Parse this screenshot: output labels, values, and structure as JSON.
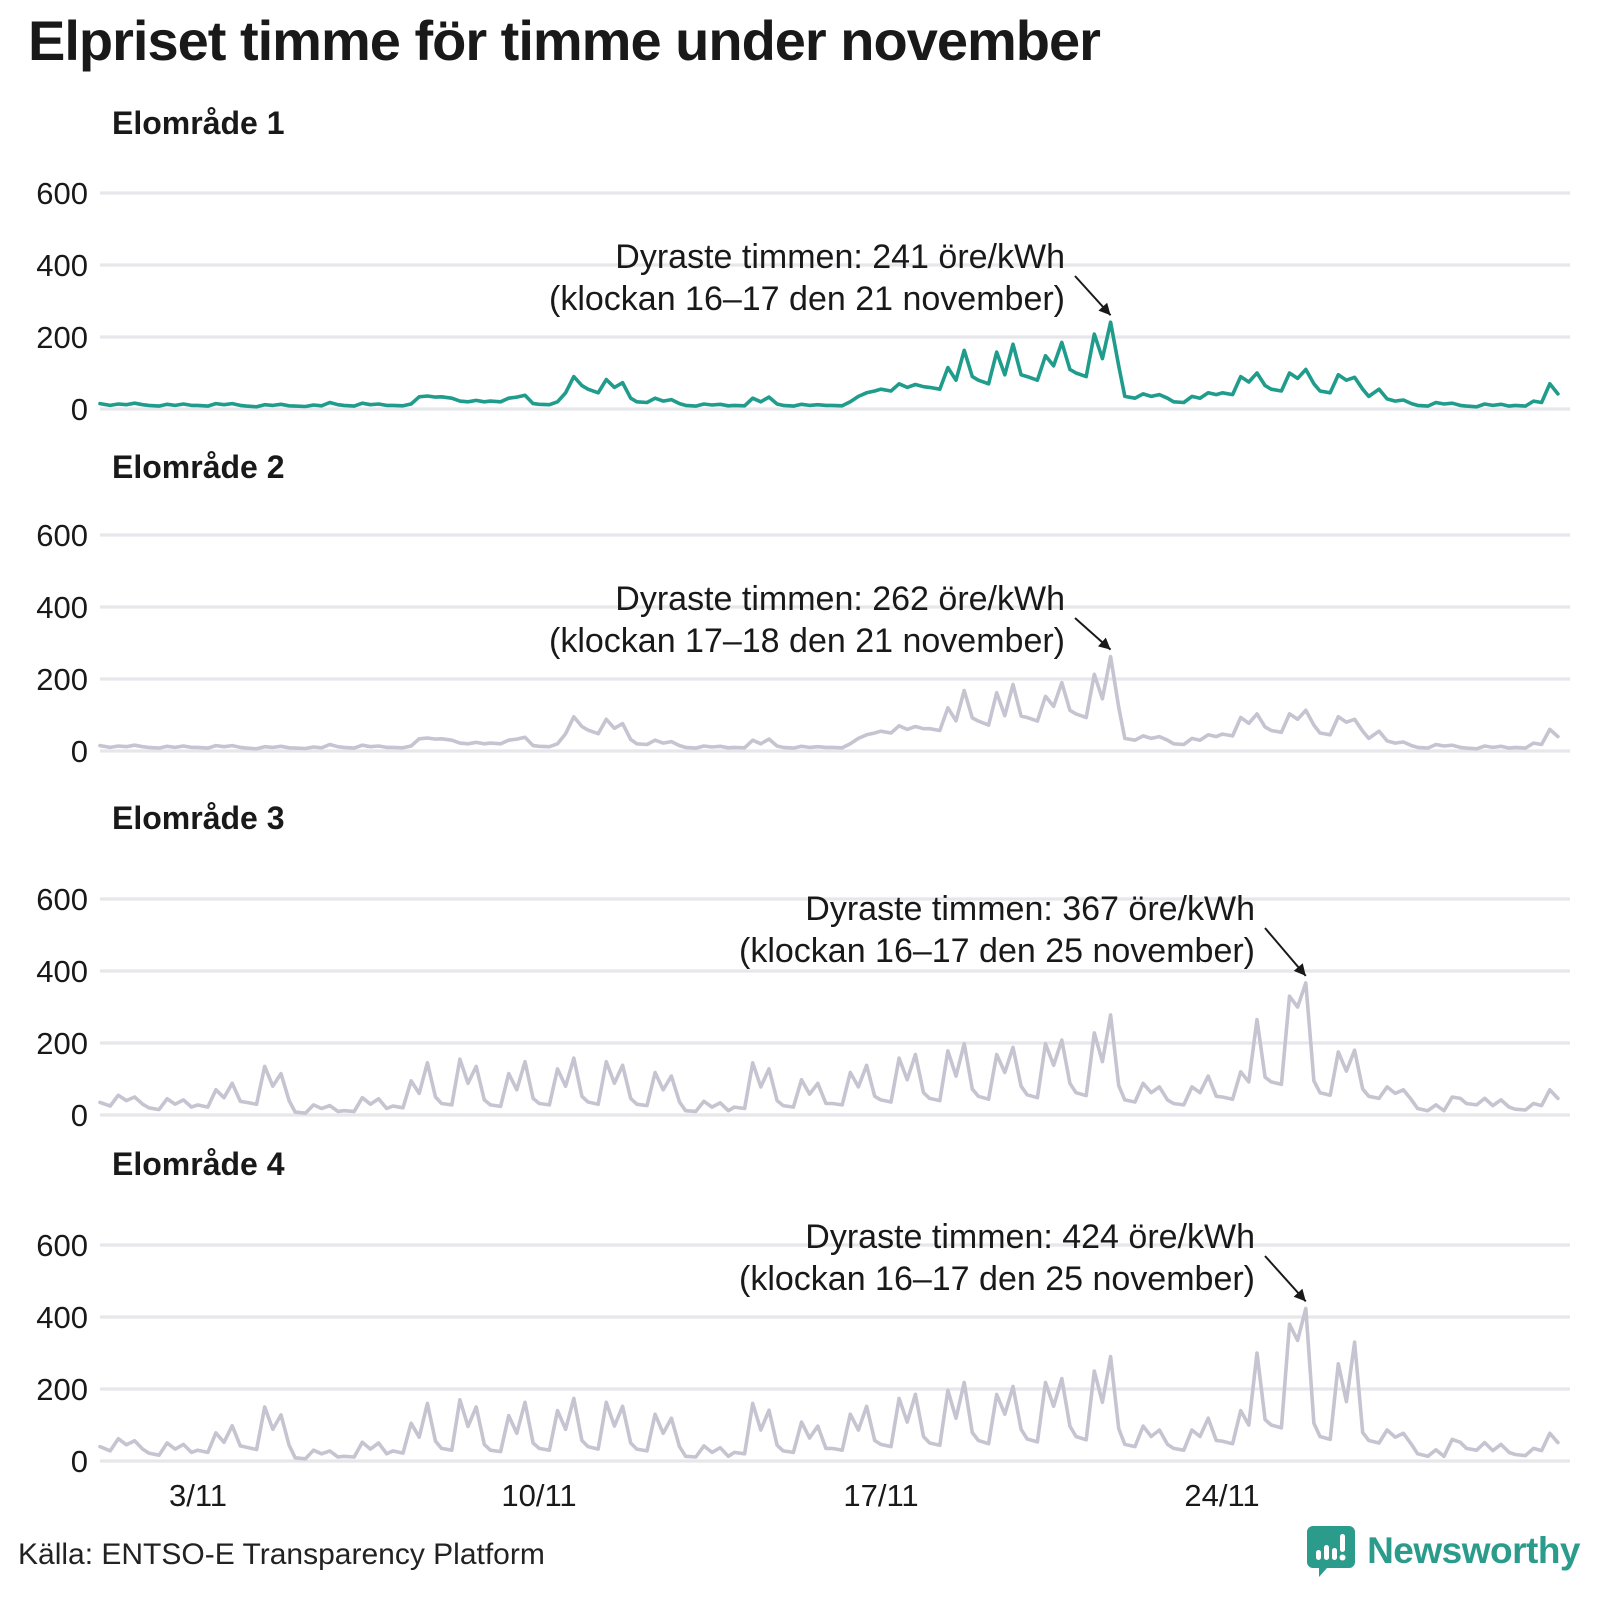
{
  "header": {
    "title": "Elpriset timme för timme under november"
  },
  "footer": {
    "source": "Källa: ENTSO-E Transparency Platform",
    "brand": "Newsworthy"
  },
  "colors": {
    "accent_teal": "#1f9c8c",
    "muted_gray": "#c6c4d1",
    "gridline": "#e7e6ea",
    "text": "#191919"
  },
  "axes": {
    "yticks": [
      0,
      200,
      400,
      600
    ],
    "xticks": [
      {
        "label": "3/11",
        "day": 3
      },
      {
        "label": "10/11",
        "day": 10
      },
      {
        "label": "17/11",
        "day": 17
      },
      {
        "label": "24/11",
        "day": 24
      }
    ]
  },
  "chart_data": [
    {
      "type": "line",
      "title": "Elområde 1",
      "unit": "öre/kWh",
      "color": "#1f9c8c",
      "ylim": [
        0,
        600
      ],
      "x_sampling": {
        "month": "november",
        "days": 30,
        "hours": [
          0,
          5,
          9,
          13,
          17,
          21
        ]
      },
      "annotation": {
        "line1": "Dyraste timmen: 241 öre/kWh",
        "line2": "(klockan 16–17 den 21 november)",
        "peak_value": 241,
        "peak_day": 21,
        "peak_hour": 17
      },
      "values_by_day": [
        [
          15,
          10,
          14,
          12,
          16,
          12
        ],
        [
          10,
          8,
          13,
          10,
          14,
          10
        ],
        [
          10,
          8,
          15,
          12,
          15,
          10
        ],
        [
          8,
          6,
          12,
          10,
          13,
          9
        ],
        [
          8,
          7,
          11,
          9,
          18,
          12
        ],
        [
          10,
          8,
          16,
          12,
          14,
          10
        ],
        [
          10,
          9,
          14,
          34,
          36,
          33
        ],
        [
          34,
          30,
          22,
          20,
          24,
          20
        ],
        [
          22,
          20,
          30,
          33,
          38,
          15
        ],
        [
          13,
          12,
          20,
          45,
          90,
          65
        ],
        [
          55,
          45,
          82,
          60,
          73,
          30
        ],
        [
          20,
          18,
          30,
          22,
          26,
          15
        ],
        [
          10,
          8,
          14,
          11,
          13,
          9
        ],
        [
          10,
          9,
          30,
          20,
          33,
          14
        ],
        [
          10,
          8,
          13,
          10,
          12,
          10
        ],
        [
          10,
          9,
          20,
          35,
          45,
          50
        ],
        [
          55,
          50,
          70,
          60,
          68,
          62
        ],
        [
          60,
          55,
          115,
          80,
          163,
          90
        ],
        [
          80,
          70,
          158,
          95,
          180,
          95
        ],
        [
          90,
          80,
          148,
          120,
          185,
          110
        ],
        [
          100,
          90,
          208,
          140,
          241,
          120
        ],
        [
          35,
          30,
          42,
          35,
          40,
          30
        ],
        [
          20,
          18,
          35,
          30,
          45,
          40
        ],
        [
          45,
          40,
          90,
          75,
          100,
          65
        ],
        [
          55,
          50,
          100,
          85,
          110,
          70
        ],
        [
          50,
          45,
          95,
          80,
          88,
          55
        ],
        [
          35,
          55,
          28,
          22,
          25,
          15
        ],
        [
          10,
          8,
          18,
          14,
          16,
          10
        ],
        [
          8,
          6,
          14,
          10,
          13,
          8
        ],
        [
          10,
          8,
          22,
          18,
          70,
          42
        ]
      ]
    },
    {
      "type": "line",
      "title": "Elområde 2",
      "unit": "öre/kWh",
      "color": "#c6c4d1",
      "ylim": [
        0,
        600
      ],
      "x_sampling": {
        "month": "november",
        "days": 30,
        "hours": [
          0,
          5,
          9,
          13,
          17,
          21
        ]
      },
      "annotation": {
        "line1": "Dyraste timmen: 262 öre/kWh",
        "line2": "(klockan 17–18 den 21 november)",
        "peak_value": 262,
        "peak_day": 21,
        "peak_hour": 17
      },
      "values_by_day": [
        [
          15,
          10,
          14,
          12,
          16,
          12
        ],
        [
          10,
          8,
          13,
          10,
          14,
          10
        ],
        [
          10,
          8,
          15,
          12,
          15,
          10
        ],
        [
          8,
          6,
          12,
          10,
          13,
          9
        ],
        [
          8,
          7,
          11,
          9,
          18,
          12
        ],
        [
          10,
          8,
          16,
          12,
          14,
          10
        ],
        [
          10,
          9,
          14,
          34,
          36,
          33
        ],
        [
          34,
          30,
          22,
          20,
          24,
          20
        ],
        [
          22,
          20,
          30,
          33,
          38,
          15
        ],
        [
          13,
          12,
          20,
          48,
          95,
          68
        ],
        [
          58,
          48,
          88,
          63,
          76,
          32
        ],
        [
          20,
          18,
          30,
          22,
          26,
          15
        ],
        [
          10,
          8,
          14,
          11,
          13,
          9
        ],
        [
          10,
          9,
          30,
          20,
          33,
          14
        ],
        [
          10,
          8,
          13,
          10,
          12,
          10
        ],
        [
          10,
          9,
          20,
          35,
          45,
          50
        ],
        [
          55,
          50,
          70,
          60,
          68,
          62
        ],
        [
          62,
          57,
          120,
          84,
          168,
          92
        ],
        [
          83,
          72,
          162,
          98,
          185,
          97
        ],
        [
          93,
          83,
          152,
          124,
          190,
          113
        ],
        [
          103,
          93,
          213,
          145,
          262,
          122
        ],
        [
          35,
          30,
          42,
          35,
          40,
          30
        ],
        [
          20,
          18,
          35,
          30,
          45,
          40
        ],
        [
          47,
          42,
          93,
          77,
          103,
          67
        ],
        [
          57,
          52,
          103,
          88,
          113,
          72
        ],
        [
          50,
          45,
          95,
          80,
          88,
          55
        ],
        [
          35,
          55,
          28,
          22,
          25,
          15
        ],
        [
          10,
          8,
          18,
          14,
          16,
          10
        ],
        [
          8,
          6,
          14,
          10,
          13,
          8
        ],
        [
          10,
          8,
          22,
          18,
          60,
          40
        ]
      ]
    },
    {
      "type": "line",
      "title": "Elområde 3",
      "unit": "öre/kWh",
      "color": "#c6c4d1",
      "ylim": [
        0,
        600
      ],
      "x_sampling": {
        "month": "november",
        "days": 30,
        "hours": [
          0,
          5,
          9,
          13,
          17,
          21
        ]
      },
      "annotation": {
        "line1": "Dyraste timmen: 367 öre/kWh",
        "line2": "(klockan 16–17 den 25 november)",
        "peak_value": 367,
        "peak_day": 25,
        "peak_hour": 17
      },
      "values_by_day": [
        [
          35,
          25,
          55,
          40,
          50,
          30
        ],
        [
          20,
          15,
          45,
          30,
          42,
          22
        ],
        [
          28,
          22,
          70,
          48,
          88,
          38
        ],
        [
          35,
          30,
          135,
          80,
          115,
          40
        ],
        [
          8,
          5,
          28,
          18,
          26,
          10
        ],
        [
          12,
          10,
          48,
          30,
          45,
          18
        ],
        [
          25,
          20,
          95,
          60,
          145,
          50
        ],
        [
          32,
          28,
          155,
          88,
          135,
          42
        ],
        [
          28,
          24,
          115,
          70,
          148,
          46
        ],
        [
          32,
          28,
          128,
          80,
          158,
          52
        ],
        [
          36,
          30,
          148,
          88,
          138,
          46
        ],
        [
          30,
          26,
          118,
          70,
          108,
          36
        ],
        [
          12,
          10,
          38,
          22,
          34,
          12
        ],
        [
          22,
          18,
          145,
          78,
          128,
          40
        ],
        [
          26,
          22,
          98,
          58,
          88,
          32
        ],
        [
          32,
          28,
          118,
          78,
          138,
          52
        ],
        [
          42,
          36,
          158,
          98,
          168,
          62
        ],
        [
          46,
          40,
          178,
          108,
          198,
          72
        ],
        [
          52,
          44,
          168,
          118,
          188,
          80
        ],
        [
          56,
          48,
          198,
          138,
          208,
          88
        ],
        [
          62,
          54,
          228,
          148,
          278,
          82
        ],
        [
          42,
          36,
          88,
          62,
          78,
          42
        ],
        [
          32,
          28,
          78,
          62,
          108,
          52
        ],
        [
          50,
          44,
          120,
          92,
          265,
          105
        ],
        [
          92,
          85,
          330,
          300,
          367,
          95
        ],
        [
          62,
          55,
          175,
          122,
          180,
          72
        ],
        [
          52,
          46,
          78,
          60,
          70,
          42
        ],
        [
          18,
          12,
          28,
          12,
          50,
          46
        ],
        [
          32,
          28,
          46,
          26,
          42,
          22
        ],
        [
          16,
          14,
          32,
          26,
          70,
          46
        ]
      ]
    },
    {
      "type": "line",
      "title": "Elområde 4",
      "unit": "öre/kWh",
      "color": "#c6c4d1",
      "ylim": [
        0,
        600
      ],
      "x_sampling": {
        "month": "november",
        "days": 30,
        "hours": [
          0,
          5,
          9,
          13,
          17,
          21
        ]
      },
      "annotation": {
        "line1": "Dyraste timmen: 424 öre/kWh",
        "line2": "(klockan 16–17 den 25 november)",
        "peak_value": 424,
        "peak_day": 25,
        "peak_hour": 17
      },
      "values_by_day": [
        [
          40,
          28,
          62,
          45,
          56,
          33
        ],
        [
          22,
          16,
          50,
          33,
          46,
          24
        ],
        [
          30,
          24,
          78,
          52,
          98,
          42
        ],
        [
          38,
          32,
          150,
          88,
          128,
          44
        ],
        [
          9,
          6,
          30,
          20,
          28,
          11
        ],
        [
          13,
          11,
          52,
          33,
          50,
          20
        ],
        [
          28,
          22,
          105,
          66,
          160,
          55
        ],
        [
          35,
          30,
          170,
          96,
          150,
          46
        ],
        [
          30,
          26,
          126,
          77,
          163,
          50
        ],
        [
          35,
          30,
          140,
          88,
          174,
          57
        ],
        [
          40,
          33,
          163,
          97,
          152,
          50
        ],
        [
          33,
          28,
          130,
          77,
          119,
          40
        ],
        [
          13,
          11,
          42,
          24,
          37,
          13
        ],
        [
          24,
          20,
          160,
          86,
          141,
          44
        ],
        [
          28,
          24,
          108,
          64,
          97,
          35
        ],
        [
          35,
          30,
          130,
          86,
          152,
          57
        ],
        [
          46,
          40,
          174,
          108,
          185,
          68
        ],
        [
          50,
          44,
          196,
          119,
          218,
          79
        ],
        [
          57,
          48,
          185,
          130,
          207,
          88
        ],
        [
          61,
          53,
          218,
          152,
          229,
          97
        ],
        [
          68,
          59,
          250,
          163,
          290,
          90
        ],
        [
          46,
          40,
          97,
          68,
          86,
          46
        ],
        [
          35,
          30,
          86,
          68,
          119,
          57
        ],
        [
          55,
          48,
          140,
          100,
          300,
          115
        ],
        [
          100,
          92,
          380,
          335,
          424,
          105
        ],
        [
          68,
          60,
          270,
          165,
          330,
          79
        ],
        [
          57,
          50,
          86,
          66,
          77,
          46
        ],
        [
          20,
          13,
          31,
          13,
          60,
          52
        ],
        [
          35,
          30,
          51,
          29,
          46,
          24
        ],
        [
          18,
          15,
          35,
          29,
          77,
          51
        ]
      ]
    }
  ]
}
